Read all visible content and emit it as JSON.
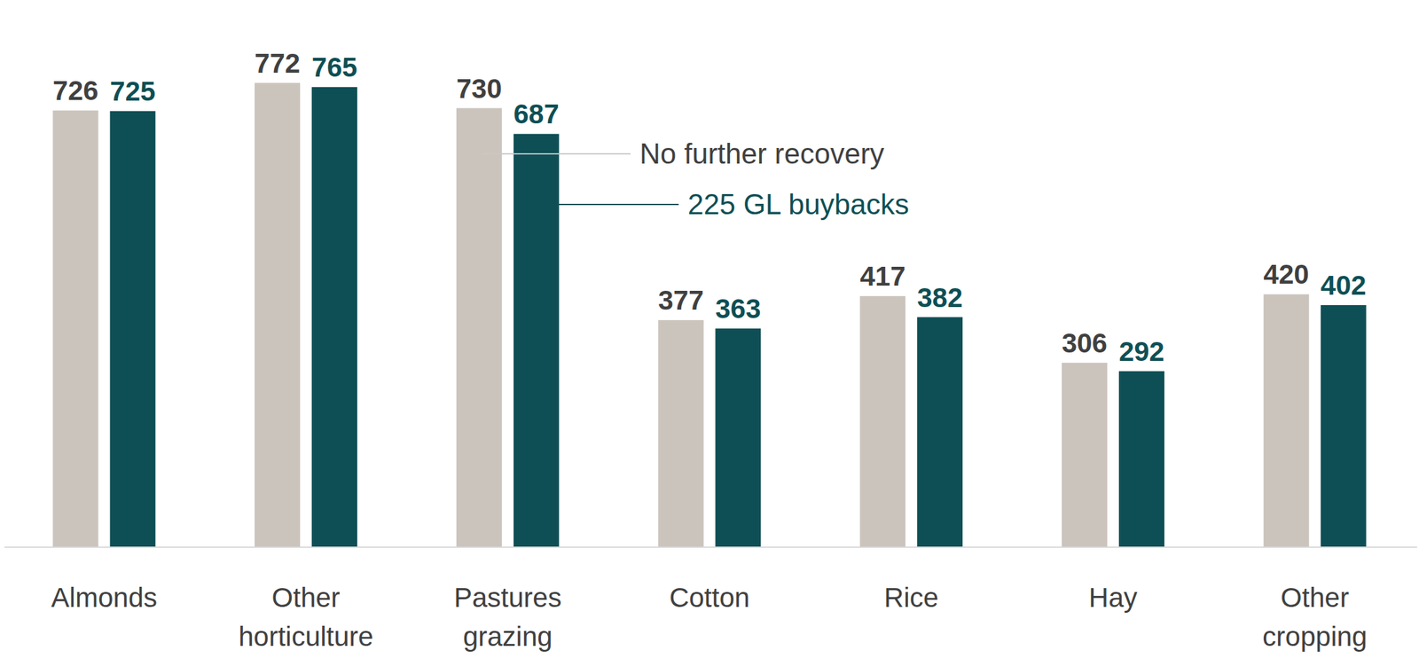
{
  "chart_data": {
    "type": "bar",
    "categories": [
      "Almonds",
      "Other horticulture",
      "Pastures grazing",
      "Cotton",
      "Rice",
      "Hay",
      "Other cropping"
    ],
    "series": [
      {
        "name": "No further recovery",
        "color": "#cbc4bd",
        "values": [
          726,
          772,
          730,
          377,
          417,
          306,
          420
        ]
      },
      {
        "name": "225 GL buybacks",
        "color": "#0e4f55",
        "values": [
          725,
          765,
          687,
          363,
          382,
          292,
          402
        ]
      }
    ],
    "ylim": [
      0,
      910
    ],
    "data_labels": true,
    "tick_labels": "x",
    "grid": false
  }
}
